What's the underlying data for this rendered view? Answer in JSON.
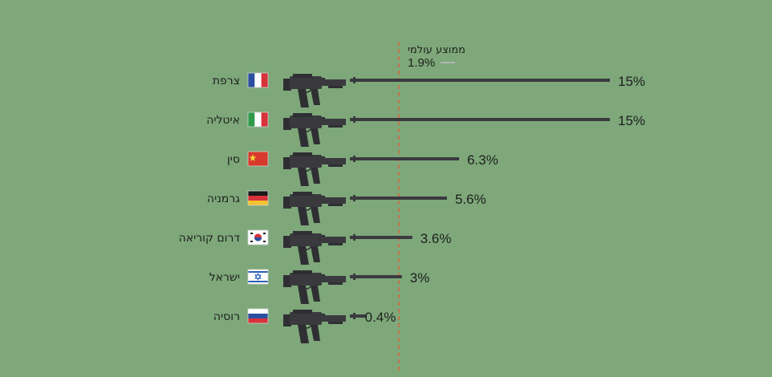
{
  "chart_data": {
    "type": "bar",
    "orientation": "horizontal",
    "categories": [
      "צרפת",
      "איטליה",
      "סין",
      "גרמניה",
      "דרום קוריאה",
      "ישראל",
      "רוסיה"
    ],
    "values": [
      15,
      15,
      6.3,
      5.6,
      3.6,
      3,
      0.4
    ],
    "value_labels": [
      "15%",
      "15%",
      "6.3%",
      "5.6%",
      "3.6%",
      "3%",
      "0.4%"
    ],
    "reference_line": {
      "label": "ממוצע עולמי",
      "value": 1.9,
      "value_label": "1.9%"
    },
    "xlim": [
      0,
      15
    ],
    "grid": false,
    "legend": "none",
    "flags": [
      "france-flag",
      "italy-flag",
      "china-flag",
      "germany-flag",
      "south-korea-flag",
      "israel-flag",
      "russia-flag"
    ],
    "colors": {
      "background": "#7ea87a",
      "bar": "#3a3a3e",
      "reference_line": "#d9623d",
      "text": "#1e1e1e"
    }
  }
}
